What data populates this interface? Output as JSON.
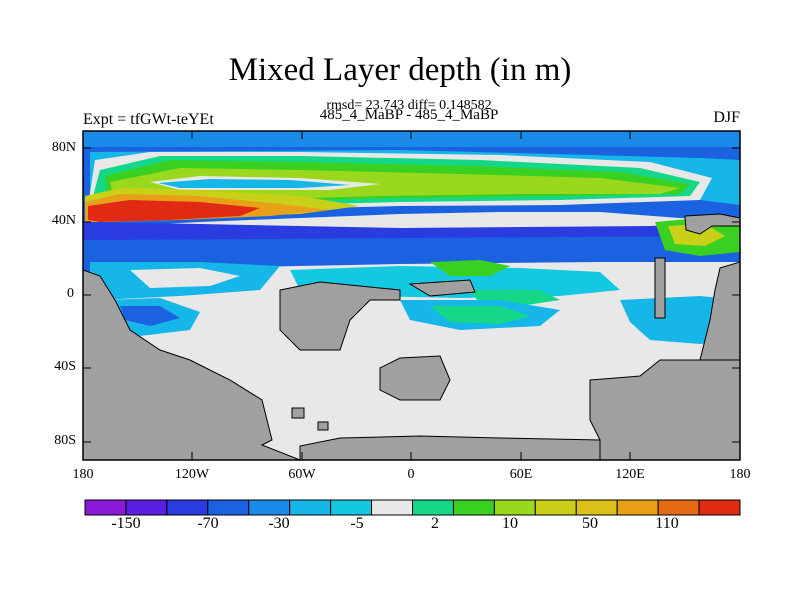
{
  "title": "Mixed Layer depth (in m)",
  "stats": "rmsd= 23.743 diff= 0.148582",
  "runs": "485_4_MaBP - 485_4_MaBP",
  "expt": "Expt = tfGWt-teYEt",
  "season": "DJF",
  "lat_ticks": [
    "80N",
    "40N",
    "0",
    "40S",
    "80S"
  ],
  "lon_ticks": [
    "180",
    "120W",
    "60W",
    "0",
    "60E",
    "120E",
    "180"
  ],
  "colorbar": {
    "colors": [
      "#8b1ad6",
      "#5a1ee0",
      "#2a3be0",
      "#1b62e0",
      "#1a8ae8",
      "#17b6e8",
      "#15c8e2",
      "#e8e8e8",
      "#14d888",
      "#3ad022",
      "#9ad81e",
      "#c8d018",
      "#dcc01a",
      "#e8a018",
      "#e66a14",
      "#e02a14"
    ],
    "labels": [
      "-150",
      "-70",
      "-30",
      "-5",
      "2",
      "10",
      "50",
      "110"
    ]
  },
  "colors": {
    "land": "#a0a0a0",
    "neutral": "#e8e8e8"
  }
}
